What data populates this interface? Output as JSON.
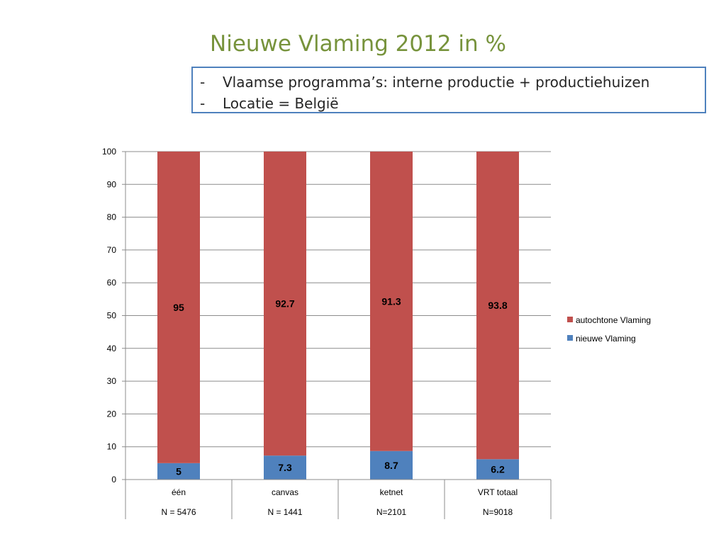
{
  "slide": {
    "title": "Nieuwe Vlaming 2012 in %",
    "notes": [
      {
        "dash": "-",
        "text": "Vlaamse programma’s: interne productie + productiehuizen"
      },
      {
        "dash": "-",
        "text": "Locatie = België"
      }
    ]
  },
  "chart_data": {
    "type": "bar",
    "stacked": true,
    "categories": [
      "één",
      "canvas",
      "ketnet",
      "VRT totaal"
    ],
    "subcategories": [
      "N = 5476",
      "N = 1441",
      "N=2101",
      "N=9018"
    ],
    "series": [
      {
        "name": "nieuwe Vlaming",
        "color": "#4f81bd",
        "values": [
          5,
          7.3,
          8.7,
          6.2
        ],
        "labels": [
          "5",
          "7.3",
          "8.7",
          "6.2"
        ]
      },
      {
        "name": "autochtone Vlaming",
        "color": "#c0504d",
        "values": [
          95,
          92.7,
          91.3,
          93.8
        ],
        "labels": [
          "95",
          "92.7",
          "91.3",
          "93.8"
        ]
      }
    ],
    "ylim": [
      0,
      100
    ],
    "yticks": [
      "0",
      "10",
      "20",
      "30",
      "40",
      "50",
      "60",
      "70",
      "80",
      "90",
      "100"
    ],
    "grid": true,
    "legend": "right",
    "xlabel": "",
    "ylabel": ""
  }
}
